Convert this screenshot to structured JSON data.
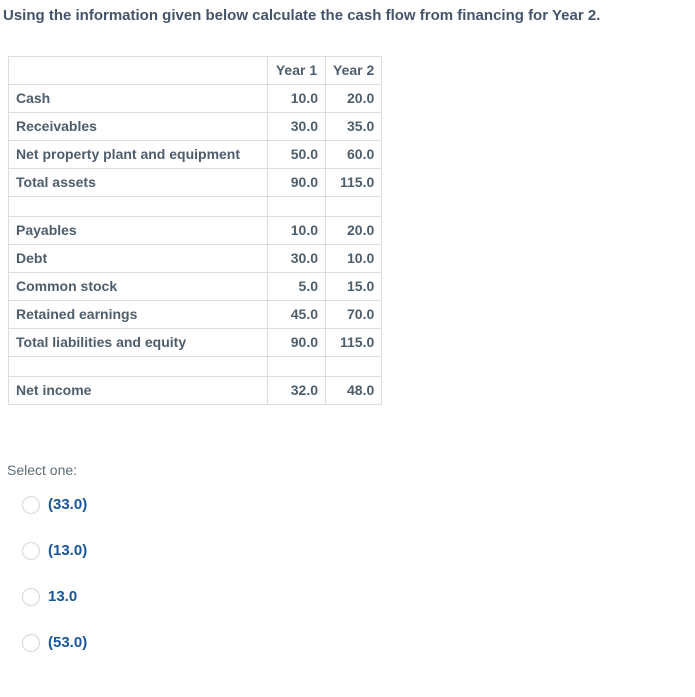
{
  "colors": {
    "background": "#ffffff",
    "title-text": "#44546a",
    "table-text": "#4e5d6c",
    "table-border": "#dddddd",
    "prompt-text": "#5f6c75",
    "option-text": "#17569e",
    "radio-border": "#d2d6da"
  },
  "question": {
    "title": "Using the information given below calculate the cash flow from financing for Year 2."
  },
  "table": {
    "column_headers": [
      "",
      "Year 1",
      "Year 2"
    ],
    "rows": [
      {
        "label": "Cash",
        "year1": "10.0",
        "year2": "20.0"
      },
      {
        "label": "Receivables",
        "year1": "30.0",
        "year2": "35.0"
      },
      {
        "label": "Net property plant and equipment",
        "year1": "50.0",
        "year2": "60.0"
      },
      {
        "label": "Total assets",
        "year1": "90.0",
        "year2": "115.0"
      },
      {
        "label": "",
        "year1": "",
        "year2": ""
      },
      {
        "label": "Payables",
        "year1": "10.0",
        "year2": "20.0"
      },
      {
        "label": "Debt",
        "year1": "30.0",
        "year2": "10.0"
      },
      {
        "label": "Common stock",
        "year1": "5.0",
        "year2": "15.0"
      },
      {
        "label": "Retained earnings",
        "year1": "45.0",
        "year2": "70.0"
      },
      {
        "label": "Total liabilities and equity",
        "year1": "90.0",
        "year2": "115.0"
      },
      {
        "label": "",
        "year1": "",
        "year2": ""
      },
      {
        "label": "Net income",
        "year1": "32.0",
        "year2": "48.0"
      }
    ]
  },
  "answer": {
    "prompt": "Select one:",
    "options": [
      {
        "label": "(33.0)",
        "selected": false
      },
      {
        "label": "(13.0)",
        "selected": false
      },
      {
        "label": "13.0",
        "selected": false
      },
      {
        "label": "(53.0)",
        "selected": false
      }
    ]
  }
}
